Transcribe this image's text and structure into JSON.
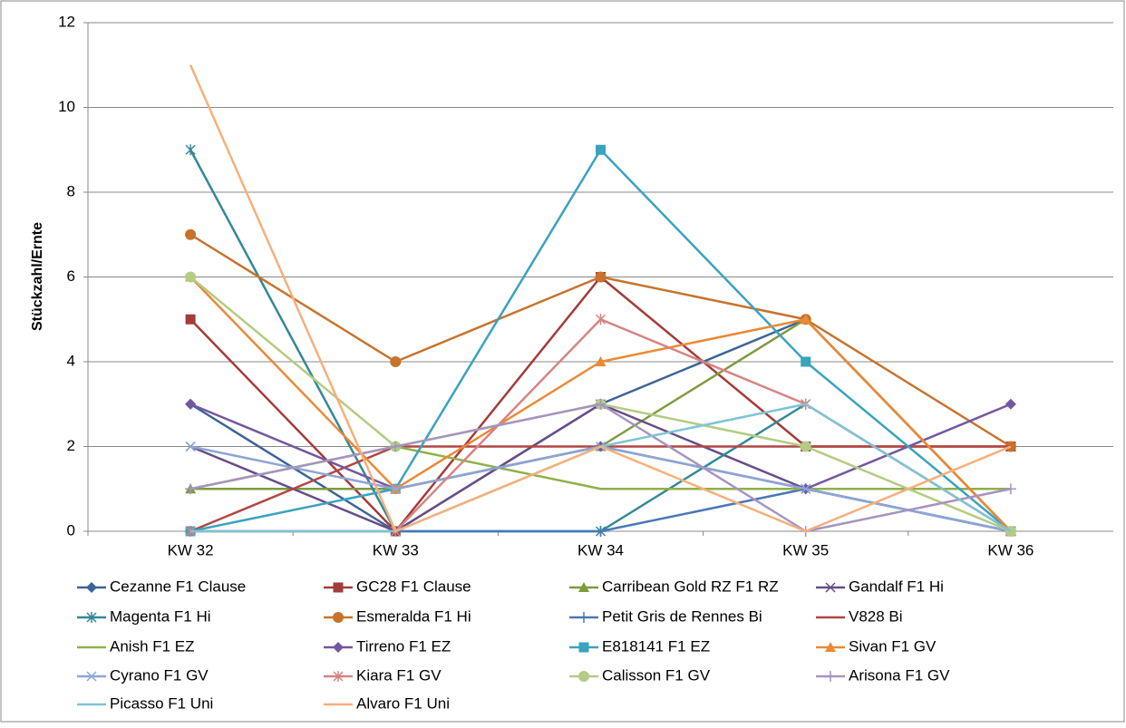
{
  "chart_data": {
    "type": "line",
    "y_label": "Stückzahl/Ernte",
    "categories": [
      "KW 32",
      "KW 33",
      "KW 34",
      "KW 35",
      "KW 36"
    ],
    "ylim": [
      0,
      12
    ],
    "yticks": [
      0,
      2,
      4,
      6,
      8,
      10,
      12
    ],
    "grid": true,
    "series": [
      {
        "name": "Cezanne F1 Clause",
        "color": "#3C6496",
        "marker": "diamond",
        "values": [
          3,
          0,
          3,
          5,
          0
        ]
      },
      {
        "name": "GC28 F1 Clause",
        "color": "#A33C3A",
        "marker": "square",
        "values": [
          5,
          0,
          6,
          2,
          2
        ]
      },
      {
        "name": "Carribean Gold RZ F1 RZ",
        "color": "#7E9B3E",
        "marker": "triangle",
        "values": [
          1,
          1,
          2,
          5,
          0
        ]
      },
      {
        "name": "Gandalf F1 Hi",
        "color": "#664D8A",
        "marker": "x",
        "values": [
          2,
          0,
          3,
          1,
          0
        ]
      },
      {
        "name": "Magenta F1 Hi",
        "color": "#318899",
        "marker": "star",
        "values": [
          9,
          0,
          0,
          3,
          0
        ]
      },
      {
        "name": "Esmeralda F1 Hi",
        "color": "#C7732C",
        "marker": "circle",
        "values": [
          7,
          4,
          6,
          5,
          2
        ]
      },
      {
        "name": "Petit Gris de Rennes Bi",
        "color": "#4A78B5",
        "marker": "plus",
        "values": [
          0,
          0,
          0,
          1,
          0
        ]
      },
      {
        "name": "V828 Bi",
        "color": "#B24643",
        "marker": "none",
        "values": [
          0,
          2,
          2,
          2,
          2
        ]
      },
      {
        "name": "Anish F1 EZ",
        "color": "#8FB04A",
        "marker": "none",
        "values": [
          1,
          2,
          1,
          1,
          1
        ]
      },
      {
        "name": "Tirreno F1 EZ",
        "color": "#7357A0",
        "marker": "diamond",
        "values": [
          3,
          1,
          2,
          1,
          3
        ]
      },
      {
        "name": "E818141 F1 EZ",
        "color": "#3AA3BE",
        "marker": "square",
        "values": [
          0,
          1,
          9,
          4,
          0
        ]
      },
      {
        "name": "Sivan F1  GV",
        "color": "#EB8935",
        "marker": "triangle",
        "values": [
          6,
          1,
          4,
          5,
          0
        ]
      },
      {
        "name": "Cyrano F1 GV",
        "color": "#8DA5D5",
        "marker": "x",
        "values": [
          2,
          1,
          2,
          1,
          0
        ]
      },
      {
        "name": "Kiara F1 GV",
        "color": "#D68482",
        "marker": "star",
        "values": [
          0,
          0,
          5,
          3,
          0
        ]
      },
      {
        "name": "Calisson F1 GV",
        "color": "#B3CC82",
        "marker": "circle",
        "values": [
          6,
          2,
          3,
          2,
          0
        ]
      },
      {
        "name": "Arisona F1 GV",
        "color": "#A594BF",
        "marker": "plus",
        "values": [
          1,
          2,
          3,
          0,
          1
        ]
      },
      {
        "name": "Picasso F1 Uni",
        "color": "#7FC3D6",
        "marker": "none",
        "values": [
          0,
          0,
          2,
          3,
          0
        ]
      },
      {
        "name": "Alvaro F1 Uni",
        "color": "#F7AF7A",
        "marker": "none",
        "values": [
          11,
          0,
          2,
          0,
          2
        ]
      }
    ]
  }
}
